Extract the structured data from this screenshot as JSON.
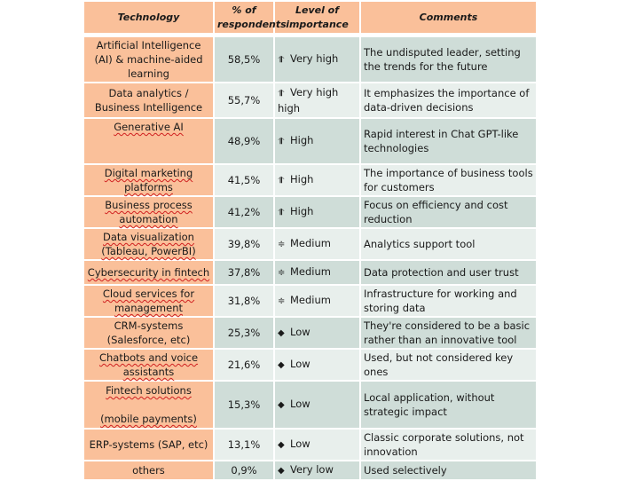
{
  "headers": {
    "technology": "Technology",
    "percent": "% of respondents",
    "level": "Level of importance",
    "comments": "Comments"
  },
  "rows": [
    {
      "tech": "Artificial Intelligence (AI) & machine-aided learning",
      "pct": "58,5%",
      "icon": "arrow-up-icon",
      "level": "Very high",
      "comment": "The undisputed leader, setting the trends for the future",
      "spell": false,
      "h": 44
    },
    {
      "tech": "Data analytics / Business Intelligence",
      "pct": "55,7%",
      "icon": "arrow-up-icon",
      "level": "Very high high",
      "comment": "It emphasizes the importance of data-driven decisions",
      "spell": false,
      "h": 40
    },
    {
      "tech": "Generative AI",
      "pct": "48,9%",
      "icon": "arrow-up-icon",
      "level": "High",
      "comment": "Rapid interest in Chat GPT-like technologies",
      "spell": true,
      "h": 52,
      "top": true
    },
    {
      "tech": "Digital marketing platforms",
      "pct": "41,5%",
      "icon": "arrow-up-icon",
      "level": "High",
      "comment": "The importance of business tools for customers",
      "spell": true,
      "h": 36
    },
    {
      "tech": "Business process automation",
      "pct": "41,2%",
      "icon": "arrow-up-icon",
      "level": "High",
      "comment": "Focus on efficiency and cost reduction",
      "spell": true,
      "h": 35
    },
    {
      "tech": "Data visualization (Tableau, PowerBI)",
      "pct": "39,8%",
      "icon": "medium-icon",
      "level": "Medium",
      "comment": "Analytics support tool",
      "spell": true,
      "h": 35
    },
    {
      "tech": "Cybersecurity in fintech",
      "pct": "37,8%",
      "icon": "medium-icon",
      "level": "Medium",
      "comment": "Data protection and user trust",
      "spell": true,
      "h": 28
    },
    {
      "tech": "Cloud services for management",
      "pct": "31,8%",
      "icon": "medium-icon",
      "level": "Medium",
      "comment": "Infrastructure for working and storing data",
      "spell": true,
      "h": 36
    },
    {
      "tech": "CRM-systems (Salesforce, etc)",
      "pct": "25,3%",
      "icon": "diamond-icon",
      "level": "Low",
      "comment": "They're considered to be a basic rather than an innovative tool",
      "spell": false,
      "h": 34
    },
    {
      "tech": "Chatbots and voice assistants",
      "pct": "21,6%",
      "icon": "diamond-icon",
      "level": "Low",
      "comment": "Used, but not considered key ones",
      "spell": true,
      "h": 34
    },
    {
      "tech": "Fintech solutions\n\n(mobile payments)",
      "pct": "15,3%",
      "icon": "diamond-icon",
      "level": "Low",
      "comment": "Local application, without strategic impact",
      "spell": true,
      "h": 54
    },
    {
      "tech": "ERP-systems (SAP, etc)",
      "pct": "13,1%",
      "icon": "diamond-icon",
      "level": "Low",
      "comment": "Classic corporate solutions, not innovation",
      "spell": false,
      "h": 35
    },
    {
      "tech": "others",
      "pct": "0,9%",
      "icon": "diamond-icon",
      "level": "Very low",
      "comment": "Used selectively",
      "spell": false,
      "h": 22
    }
  ]
}
